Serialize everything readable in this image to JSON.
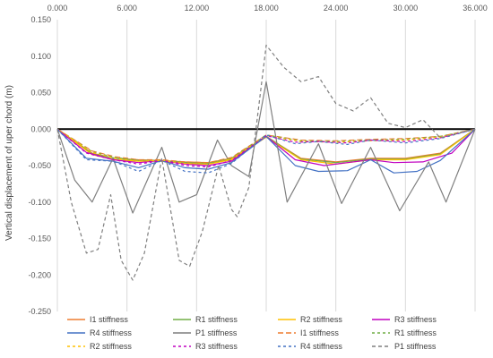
{
  "chart_data": {
    "type": "line",
    "title": "",
    "xlabel": "",
    "ylabel": "Vertical displacement of uper chord (m)",
    "xlim": [
      0,
      36
    ],
    "ylim": [
      -0.25,
      0.15
    ],
    "x_ticks": [
      "0.000",
      "6.000",
      "12.000",
      "18.000",
      "24.000",
      "30.000",
      "36.000"
    ],
    "y_ticks": [
      "0.150",
      "0.100",
      "0.050",
      "0.000",
      "-0.050",
      "-0.100",
      "-0.150",
      "-0.200",
      "-0.250"
    ],
    "x_axis_position": "top",
    "grid": "vertical",
    "legend_position": "bottom",
    "series": [
      {
        "name": "I1 stiffness",
        "color": "#ED7D31",
        "dash": "solid",
        "points": [
          [
            0,
            0
          ],
          [
            3,
            -0.033
          ],
          [
            5,
            -0.04
          ],
          [
            7,
            -0.042
          ],
          [
            9,
            -0.043
          ],
          [
            11,
            -0.045
          ],
          [
            13,
            -0.046
          ],
          [
            15,
            -0.04
          ],
          [
            18,
            -0.01
          ],
          [
            21,
            -0.04
          ],
          [
            24,
            -0.045
          ],
          [
            27,
            -0.04
          ],
          [
            30,
            -0.04
          ],
          [
            33,
            -0.033
          ],
          [
            36,
            0
          ]
        ]
      },
      {
        "name": "R1 stiffness",
        "color": "#70AD47",
        "dash": "solid",
        "points": [
          [
            0,
            0
          ],
          [
            3,
            -0.034
          ],
          [
            5,
            -0.04
          ],
          [
            7,
            -0.043
          ],
          [
            9,
            -0.043
          ],
          [
            11,
            -0.046
          ],
          [
            13,
            -0.047
          ],
          [
            15,
            -0.041
          ],
          [
            18,
            -0.01
          ],
          [
            21,
            -0.041
          ],
          [
            24,
            -0.046
          ],
          [
            27,
            -0.041
          ],
          [
            30,
            -0.041
          ],
          [
            33,
            -0.034
          ],
          [
            36,
            0
          ]
        ]
      },
      {
        "name": "R2 stiffness",
        "color": "#FFC000",
        "dash": "solid",
        "points": [
          [
            0,
            0
          ],
          [
            3,
            -0.035
          ],
          [
            5,
            -0.042
          ],
          [
            7,
            -0.044
          ],
          [
            9,
            -0.044
          ],
          [
            11,
            -0.047
          ],
          [
            13,
            -0.048
          ],
          [
            15,
            -0.042
          ],
          [
            18,
            -0.011
          ],
          [
            21,
            -0.042
          ],
          [
            24,
            -0.048
          ],
          [
            27,
            -0.042
          ],
          [
            30,
            -0.042
          ],
          [
            33,
            -0.035
          ],
          [
            36,
            0
          ]
        ]
      },
      {
        "name": "R3 stiffness",
        "color": "#C000C0",
        "dash": "solid",
        "points": [
          [
            0,
            0
          ],
          [
            2.5,
            -0.032
          ],
          [
            4.8,
            -0.042
          ],
          [
            7,
            -0.046
          ],
          [
            9,
            -0.043
          ],
          [
            11,
            -0.048
          ],
          [
            13,
            -0.05
          ],
          [
            15,
            -0.044
          ],
          [
            18,
            -0.01
          ],
          [
            20.5,
            -0.042
          ],
          [
            23,
            -0.05
          ],
          [
            25,
            -0.046
          ],
          [
            27,
            -0.042
          ],
          [
            29,
            -0.046
          ],
          [
            31.5,
            -0.045
          ],
          [
            34,
            -0.033
          ],
          [
            36,
            0
          ]
        ]
      },
      {
        "name": "R4 stiffness",
        "color": "#4472C4",
        "dash": "solid",
        "points": [
          [
            0,
            0
          ],
          [
            2.5,
            -0.04
          ],
          [
            4.8,
            -0.044
          ],
          [
            7,
            -0.053
          ],
          [
            9,
            -0.043
          ],
          [
            11,
            -0.053
          ],
          [
            13,
            -0.055
          ],
          [
            15,
            -0.046
          ],
          [
            18,
            -0.01
          ],
          [
            20.5,
            -0.05
          ],
          [
            22.5,
            -0.058
          ],
          [
            25,
            -0.057
          ],
          [
            27,
            -0.042
          ],
          [
            29,
            -0.06
          ],
          [
            31,
            -0.058
          ],
          [
            33,
            -0.043
          ],
          [
            36,
            0
          ]
        ]
      },
      {
        "name": "P1 stiffness",
        "color": "#7F7F7F",
        "dash": "solid",
        "points": [
          [
            0,
            0
          ],
          [
            1.5,
            -0.07
          ],
          [
            3,
            -0.1
          ],
          [
            4.8,
            -0.04
          ],
          [
            6.5,
            -0.115
          ],
          [
            9,
            -0.025
          ],
          [
            10.5,
            -0.1
          ],
          [
            12,
            -0.09
          ],
          [
            13.8,
            -0.015
          ],
          [
            15,
            -0.05
          ],
          [
            16.5,
            -0.065
          ],
          [
            18,
            0.065
          ],
          [
            19.8,
            -0.1
          ],
          [
            22.5,
            -0.02
          ],
          [
            24.5,
            -0.102
          ],
          [
            27,
            -0.025
          ],
          [
            29.5,
            -0.112
          ],
          [
            32,
            -0.045
          ],
          [
            33.5,
            -0.1
          ],
          [
            36,
            0
          ]
        ]
      },
      {
        "name": "I1 stiffness",
        "color": "#ED7D31",
        "dash": "6,3",
        "points": [
          [
            0,
            0
          ],
          [
            3,
            -0.03
          ],
          [
            5,
            -0.038
          ],
          [
            7,
            -0.042
          ],
          [
            9,
            -0.042
          ],
          [
            11,
            -0.045
          ],
          [
            13,
            -0.046
          ],
          [
            15,
            -0.039
          ],
          [
            18,
            -0.008
          ],
          [
            21,
            -0.015
          ],
          [
            24,
            -0.016
          ],
          [
            27,
            -0.014
          ],
          [
            30,
            -0.013
          ],
          [
            33,
            -0.01
          ],
          [
            36,
            0
          ]
        ]
      },
      {
        "name": "R1 stiffness",
        "color": "#70AD47",
        "dash": "3,3",
        "points": [
          [
            0,
            0
          ],
          [
            3,
            -0.031
          ],
          [
            5,
            -0.039
          ],
          [
            7,
            -0.043
          ],
          [
            9,
            -0.043
          ],
          [
            11,
            -0.046
          ],
          [
            13,
            -0.047
          ],
          [
            15,
            -0.04
          ],
          [
            18,
            -0.008
          ],
          [
            21,
            -0.016
          ],
          [
            24,
            -0.017
          ],
          [
            27,
            -0.015
          ],
          [
            30,
            -0.014
          ],
          [
            33,
            -0.01
          ],
          [
            36,
            0
          ]
        ]
      },
      {
        "name": "R2 stiffness",
        "color": "#FFC000",
        "dash": "3,3",
        "points": [
          [
            0,
            0
          ],
          [
            3,
            -0.032
          ],
          [
            5,
            -0.04
          ],
          [
            7,
            -0.044
          ],
          [
            9,
            -0.043
          ],
          [
            11,
            -0.047
          ],
          [
            13,
            -0.048
          ],
          [
            15,
            -0.041
          ],
          [
            18,
            -0.009
          ],
          [
            21,
            -0.017
          ],
          [
            24,
            -0.018
          ],
          [
            27,
            -0.016
          ],
          [
            30,
            -0.015
          ],
          [
            33,
            -0.011
          ],
          [
            36,
            0
          ]
        ]
      },
      {
        "name": "R3 stiffness",
        "color": "#C000C0",
        "dash": "3,3",
        "points": [
          [
            0,
            0
          ],
          [
            2.5,
            -0.033
          ],
          [
            4.8,
            -0.042
          ],
          [
            7,
            -0.048
          ],
          [
            9,
            -0.043
          ],
          [
            11,
            -0.05
          ],
          [
            13,
            -0.052
          ],
          [
            15,
            -0.043
          ],
          [
            18,
            -0.009
          ],
          [
            20.5,
            -0.018
          ],
          [
            22.5,
            -0.017
          ],
          [
            25,
            -0.019
          ],
          [
            27,
            -0.015
          ],
          [
            30,
            -0.017
          ],
          [
            33,
            -0.012
          ],
          [
            36,
            0
          ]
        ]
      },
      {
        "name": "R4 stiffness",
        "color": "#4472C4",
        "dash": "3,3",
        "points": [
          [
            0,
            0
          ],
          [
            2.5,
            -0.042
          ],
          [
            4.8,
            -0.044
          ],
          [
            7,
            -0.058
          ],
          [
            9,
            -0.043
          ],
          [
            11,
            -0.058
          ],
          [
            13,
            -0.06
          ],
          [
            15,
            -0.047
          ],
          [
            18,
            -0.008
          ],
          [
            20.5,
            -0.02
          ],
          [
            22.5,
            -0.017
          ],
          [
            25,
            -0.021
          ],
          [
            27,
            -0.015
          ],
          [
            30,
            -0.019
          ],
          [
            33,
            -0.013
          ],
          [
            36,
            0
          ]
        ]
      },
      {
        "name": "P1 stiffness",
        "color": "#7F7F7F",
        "dash": "4,3",
        "points": [
          [
            0,
            0
          ],
          [
            1.2,
            -0.1
          ],
          [
            2.5,
            -0.17
          ],
          [
            3.5,
            -0.165
          ],
          [
            4.6,
            -0.09
          ],
          [
            5.5,
            -0.18
          ],
          [
            6.5,
            -0.207
          ],
          [
            7.5,
            -0.17
          ],
          [
            9,
            -0.04
          ],
          [
            10.5,
            -0.18
          ],
          [
            11.4,
            -0.188
          ],
          [
            12.5,
            -0.14
          ],
          [
            13.9,
            -0.05
          ],
          [
            15,
            -0.11
          ],
          [
            15.5,
            -0.12
          ],
          [
            16.5,
            -0.08
          ],
          [
            18,
            0.115
          ],
          [
            19.5,
            0.085
          ],
          [
            21,
            0.065
          ],
          [
            22.5,
            0.072
          ],
          [
            24,
            0.035
          ],
          [
            25.5,
            0.025
          ],
          [
            27,
            0.043
          ],
          [
            28.5,
            0.008
          ],
          [
            30,
            0.002
          ],
          [
            31.5,
            0.013
          ],
          [
            33,
            -0.012
          ],
          [
            34.5,
            -0.006
          ],
          [
            36,
            0
          ]
        ]
      }
    ]
  }
}
